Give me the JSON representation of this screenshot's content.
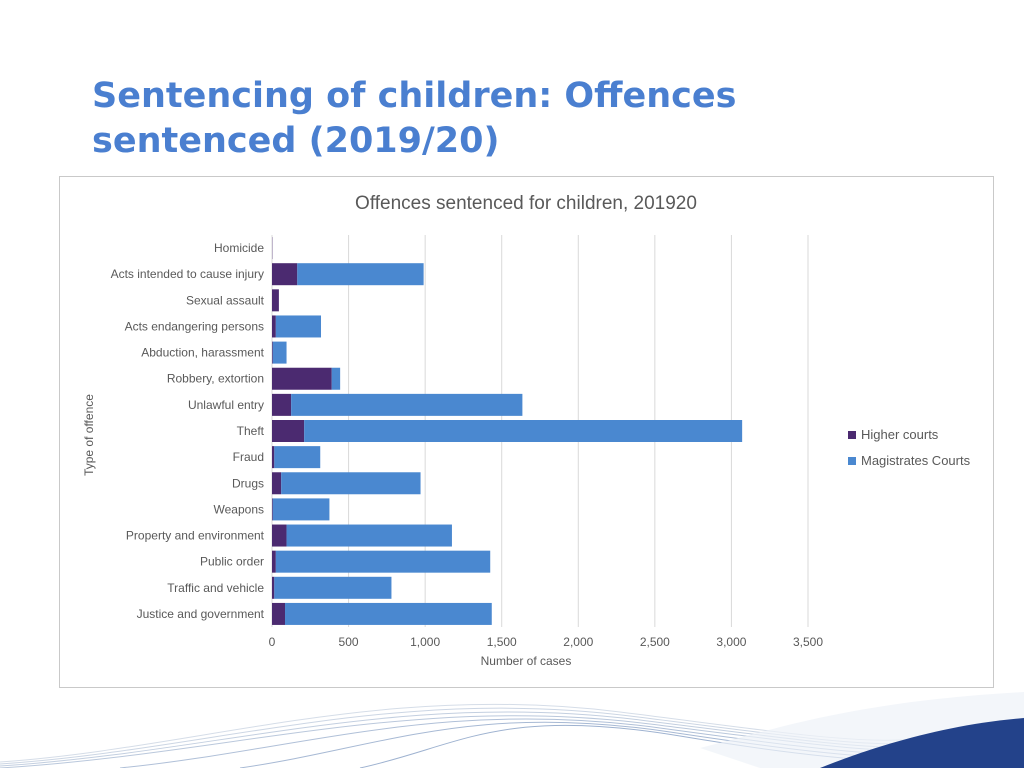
{
  "slide": {
    "title_line1": "Sentencing of children: Offences",
    "title_line2": "sentenced (2019/20)"
  },
  "chart_data": {
    "type": "bar",
    "orientation": "horizontal",
    "stacked": true,
    "title": "Offences sentenced for children, 201920",
    "xlabel": "Number of cases",
    "ylabel": "Type of offence",
    "categories": [
      "Homicide",
      "Acts intended to cause injury",
      "Sexual assault",
      "Acts endangering persons",
      "Abduction, harassment",
      "Robbery, extortion",
      "Unlawful entry",
      "Theft",
      "Fraud",
      "Drugs",
      "Weapons",
      "Property and environment",
      "Public order",
      "Traffic and vehicle",
      "Justice and government"
    ],
    "series": [
      {
        "name": "Higher courts",
        "color": "#4b2a70",
        "values": [
          2,
          165,
          45,
          25,
          5,
          390,
          125,
          210,
          15,
          60,
          5,
          95,
          25,
          15,
          85
        ]
      },
      {
        "name": "Magistrates Courts",
        "color": "#4a88d0",
        "values": [
          0,
          825,
          0,
          295,
          90,
          55,
          1510,
          2860,
          300,
          910,
          370,
          1080,
          1400,
          765,
          1350
        ]
      }
    ],
    "xlim": [
      0,
      3500
    ],
    "xticks": [
      0,
      500,
      1000,
      1500,
      2000,
      2500,
      3000,
      3500
    ],
    "xtick_labels": [
      "0",
      "500",
      "1,000",
      "1,500",
      "2,000",
      "2,500",
      "3,000",
      "3,500"
    ],
    "grid": true,
    "legend_position": "right"
  }
}
